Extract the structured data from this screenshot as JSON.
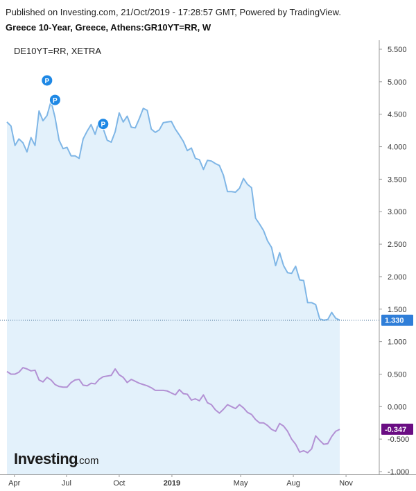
{
  "header": {
    "published": "Published on Investing.com, 21/Oct/2019 - 17:28:57 GMT, Powered by TradingView.",
    "symbol_title": "Greece 10-Year, Greece, Athens:GR10YT=RR, W"
  },
  "legend": {
    "compare_series": "DE10YT=RR, XETRA"
  },
  "logo": {
    "brand": "Investing",
    "suffix": ".com"
  },
  "colors": {
    "greece_line": "#7fb6e6",
    "greece_fill": "#e3f1fb",
    "germany_line": "#b391d4",
    "greece_badge": "#2f7ed8",
    "germany_badge": "#6a0d83",
    "marker": "#1e88e5",
    "axis": "#999999"
  },
  "chart_data": {
    "type": "line",
    "title": "Greece 10-Year, Greece, Athens:GR10YT=RR, W",
    "ylim": [
      -1.0,
      5.5
    ],
    "y_ticks": [
      "5.500",
      "5.000",
      "4.500",
      "4.000",
      "3.500",
      "3.000",
      "2.500",
      "2.000",
      "1.500",
      "1.000",
      "0.500",
      "0.000",
      "-0.500",
      "-1.000"
    ],
    "x_ticks": [
      {
        "label": "Apr",
        "date": "2018-04-01"
      },
      {
        "label": "Jul",
        "date": "2018-07-01"
      },
      {
        "label": "Oct",
        "date": "2018-10-01"
      },
      {
        "label": "2019",
        "date": "2019-01-01"
      },
      {
        "label": "May",
        "date": "2019-05-01"
      },
      {
        "label": "Aug",
        "date": "2019-08-01"
      },
      {
        "label": "Nov",
        "date": "2019-11-01"
      }
    ],
    "x_start": "2018-03-19",
    "series": [
      {
        "name": "Greece 10-Year",
        "last_value": "1.330",
        "values": [
          4.38,
          4.32,
          4.02,
          4.12,
          4.06,
          3.92,
          4.14,
          4.02,
          4.55,
          4.4,
          4.48,
          4.7,
          4.45,
          4.1,
          3.97,
          3.99,
          3.86,
          3.86,
          3.82,
          4.12,
          4.24,
          4.34,
          4.19,
          4.4,
          4.28,
          4.1,
          4.07,
          4.23,
          4.52,
          4.38,
          4.47,
          4.3,
          4.29,
          4.43,
          4.59,
          4.56,
          4.27,
          4.22,
          4.26,
          4.37,
          4.38,
          4.39,
          4.27,
          4.18,
          4.08,
          3.94,
          3.98,
          3.82,
          3.8,
          3.65,
          3.79,
          3.78,
          3.74,
          3.71,
          3.56,
          3.31,
          3.31,
          3.3,
          3.36,
          3.51,
          3.42,
          3.37,
          2.9,
          2.81,
          2.71,
          2.55,
          2.45,
          2.17,
          2.37,
          2.17,
          2.06,
          2.05,
          2.16,
          1.95,
          1.94,
          1.6,
          1.6,
          1.57,
          1.35,
          1.33,
          1.34,
          1.45,
          1.36,
          1.33
        ]
      },
      {
        "name": "DE10YT=RR, XETRA",
        "last_value": "-0.347",
        "values": [
          0.54,
          0.5,
          0.5,
          0.53,
          0.6,
          0.58,
          0.55,
          0.56,
          0.41,
          0.38,
          0.45,
          0.41,
          0.34,
          0.31,
          0.3,
          0.3,
          0.37,
          0.41,
          0.42,
          0.33,
          0.32,
          0.36,
          0.35,
          0.42,
          0.46,
          0.47,
          0.48,
          0.58,
          0.49,
          0.45,
          0.37,
          0.42,
          0.39,
          0.36,
          0.34,
          0.32,
          0.29,
          0.25,
          0.25,
          0.25,
          0.24,
          0.21,
          0.18,
          0.26,
          0.2,
          0.19,
          0.1,
          0.12,
          0.09,
          0.18,
          0.06,
          0.03,
          -0.05,
          -0.1,
          -0.04,
          0.03,
          0.0,
          -0.03,
          0.03,
          -0.02,
          -0.09,
          -0.12,
          -0.2,
          -0.25,
          -0.25,
          -0.29,
          -0.35,
          -0.38,
          -0.26,
          -0.3,
          -0.38,
          -0.5,
          -0.58,
          -0.7,
          -0.68,
          -0.71,
          -0.65,
          -0.45,
          -0.52,
          -0.58,
          -0.57,
          -0.46,
          -0.38,
          -0.35
        ]
      }
    ],
    "markers": [
      {
        "label": "P",
        "index": 10,
        "value": 5.02
      },
      {
        "label": "P",
        "index": 12,
        "value": 4.72
      },
      {
        "label": "P",
        "index": 24,
        "value": 4.35
      }
    ]
  }
}
